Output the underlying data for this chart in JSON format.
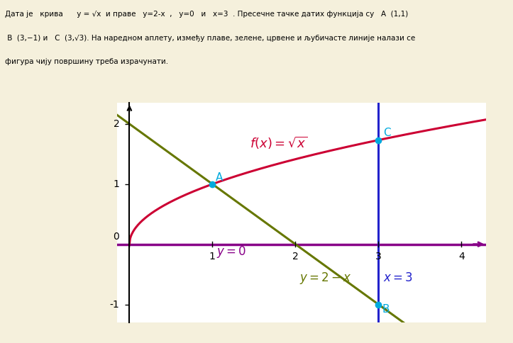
{
  "fig_bg_color": "#f5f0dc",
  "plot_bg_color": "#ffffff",
  "plot_border_color": "#cccccc",
  "xlim": [
    -0.15,
    4.3
  ],
  "ylim": [
    -1.3,
    2.35
  ],
  "xticks": [
    0,
    1,
    2,
    3,
    4
  ],
  "yticks": [
    -1,
    0,
    1,
    2
  ],
  "curve_color": "#cc0033",
  "line1_color": "#667700",
  "line2_color": "#880088",
  "line3_color": "#2222cc",
  "point_color": "#00aadd",
  "point_A": [
    1,
    1
  ],
  "point_B": [
    3,
    -1
  ],
  "point_C": [
    3,
    1.7320508
  ],
  "annotation_fontsize": 12,
  "tick_fontsize": 10,
  "header_text_line1": "Дата је   крива     y = √x  и праве   y=2-x  ,   y=0   и   x=3  . Пресечне тачке датих функција су   A  (1,1)",
  "header_text_line2": " B  (3,−1) и   C  (3,√3). На наредном аплету, између плаве, зелене, црвене и љубичасте линије налази се",
  "header_text_line3": "фигура чију површину треба израчунати."
}
